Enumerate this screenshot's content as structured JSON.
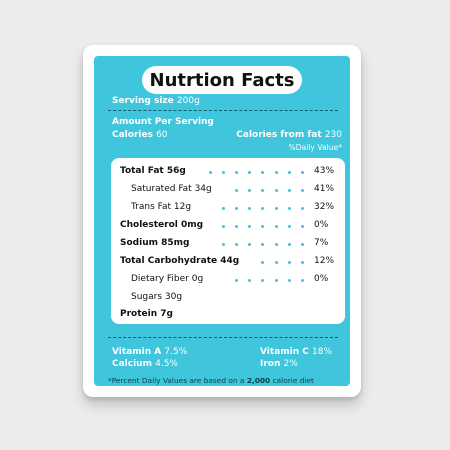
{
  "title": "Nutrtion Facts",
  "serving": {
    "label": "Serving size",
    "value": "200g"
  },
  "amount_per_serving": "Amount Per Serving",
  "calories": {
    "label": "Calories",
    "value": "60"
  },
  "calories_from_fat": {
    "label": "Calories from fat",
    "value": "230"
  },
  "daily_value_header": "%Daily Value*",
  "rows": [
    {
      "name": "Total Fat 56g",
      "pct": "43%"
    },
    {
      "name": "Saturated Fat 34g",
      "pct": "41%"
    },
    {
      "name": "Trans Fat 12g",
      "pct": "32%"
    },
    {
      "name": "Cholesterol 0mg",
      "pct": "0%"
    },
    {
      "name": "Sodium 85mg",
      "pct": "7%"
    },
    {
      "name": "Total Carbohydrate 44g",
      "pct": "12%"
    },
    {
      "name": "Dietary Fiber 0g",
      "pct": "0%"
    },
    {
      "name": "Sugars 30g",
      "pct": ""
    },
    {
      "name": "Protein 7g",
      "pct": ""
    }
  ],
  "vitamins": {
    "vitamin_a": {
      "label": "Vitamin A",
      "value": "7.5%"
    },
    "vitamin_c": {
      "label": "Vitamin C",
      "value": "18%"
    },
    "calcium": {
      "label": "Calcium",
      "value": "4.5%"
    },
    "iron": {
      "label": "Iron",
      "value": "2%"
    }
  },
  "footnote": {
    "before": "*Percent Daily Values are based on a",
    "highlight": "2,000",
    "after": "calorie diet"
  },
  "colors": {
    "panel": "#3fc5dc",
    "dot": "#3fc5dc",
    "card": "#ffffff",
    "background": "#ececec"
  }
}
